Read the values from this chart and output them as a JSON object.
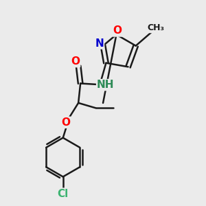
{
  "bg_color": "#ebebeb",
  "bond_color": "#1a1a1a",
  "bond_width": 1.8,
  "atom_colors": {
    "O": "#ff0000",
    "N": "#0000cd",
    "Cl": "#3cb371",
    "NH_color": "#2e8b57",
    "C": "#1a1a1a"
  },
  "font_size_atom": 11,
  "figsize": [
    3.0,
    3.0
  ],
  "dpi": 100
}
